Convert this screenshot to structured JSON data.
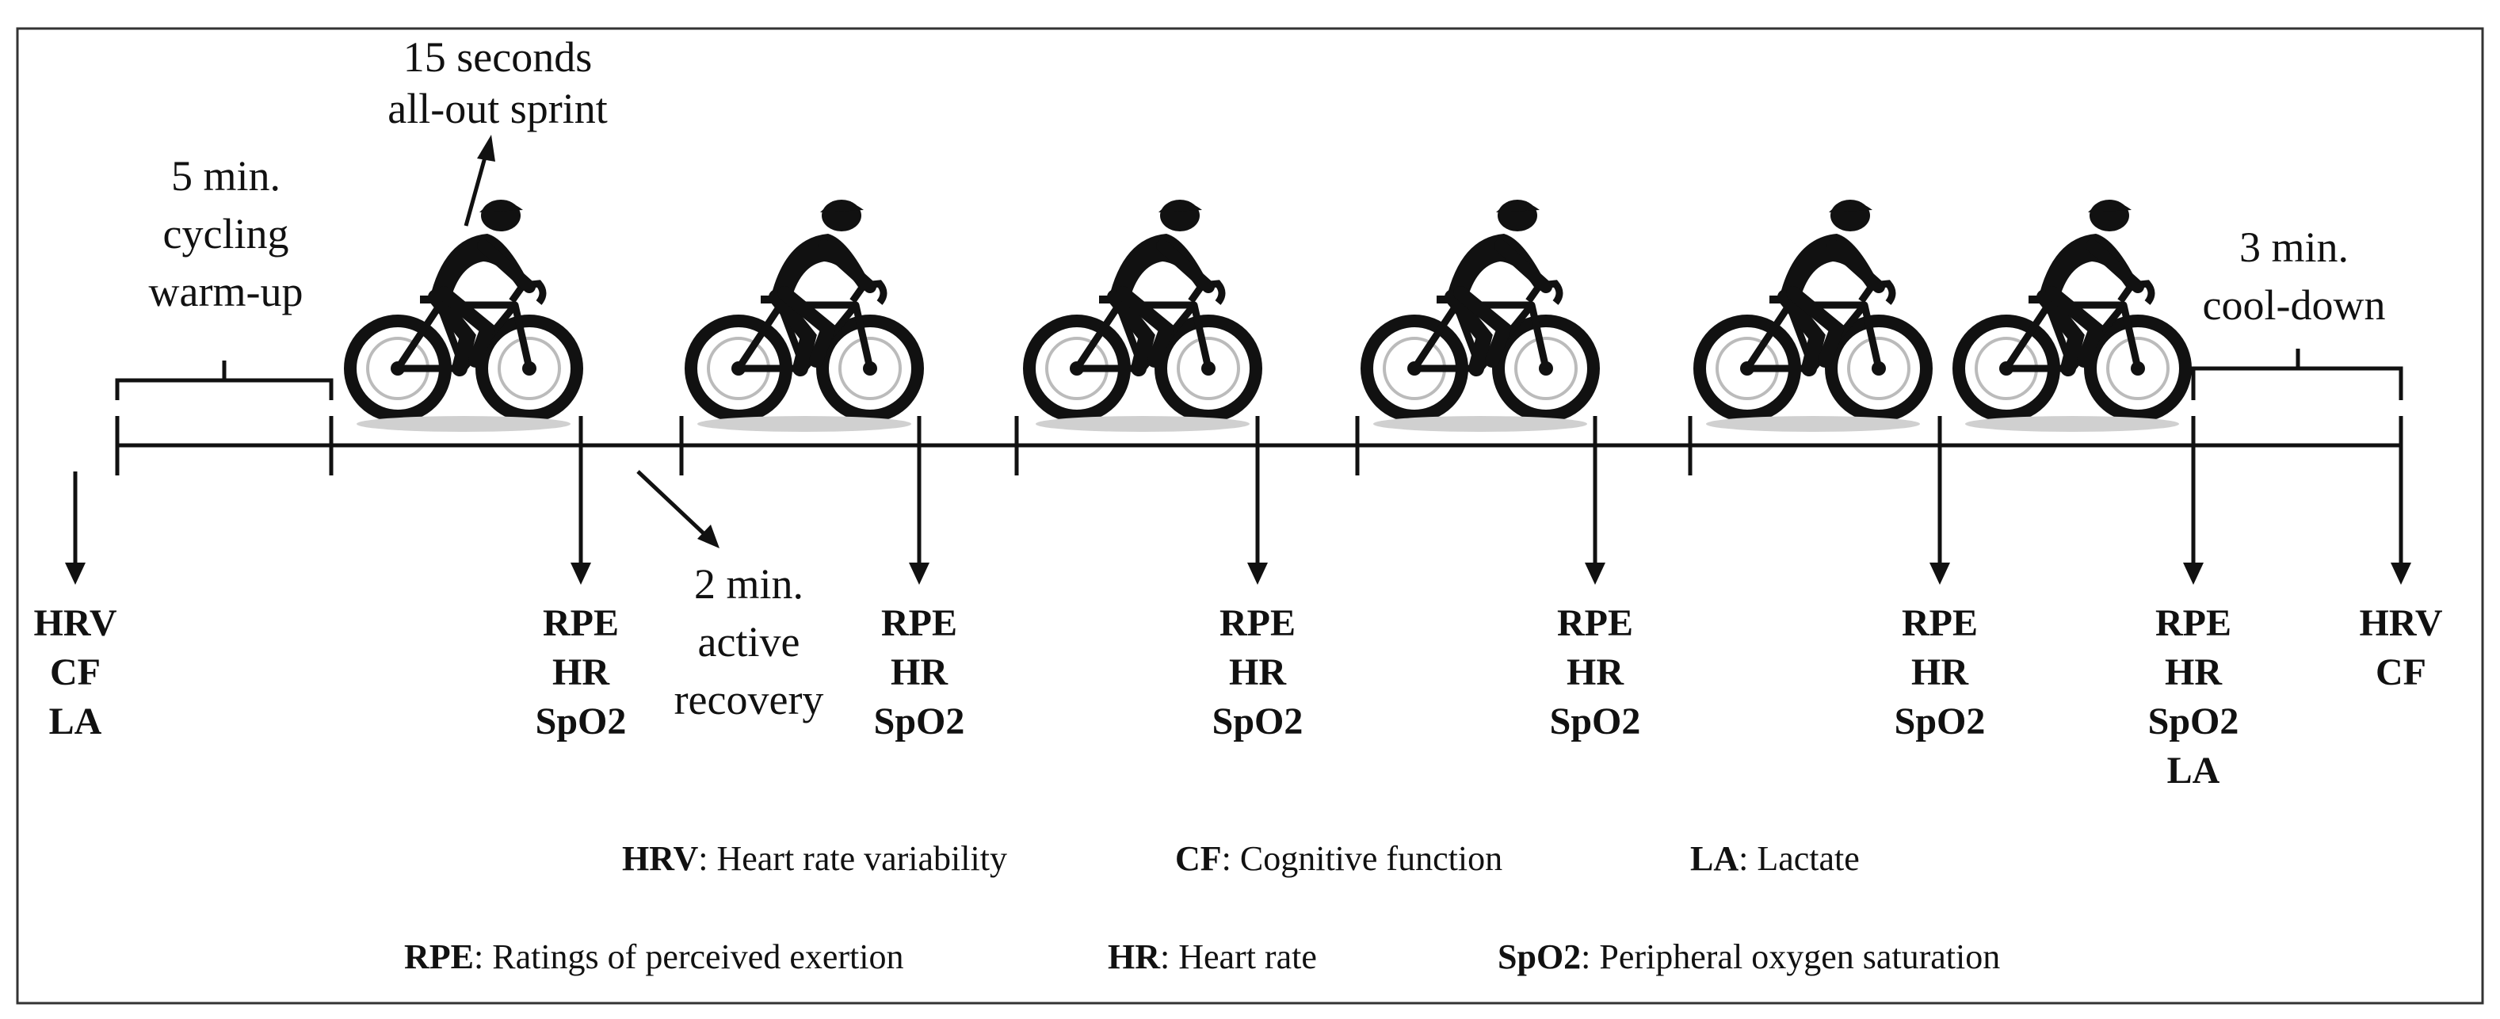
{
  "labels": {
    "sprint": [
      "15 seconds",
      "all-out sprint"
    ],
    "warmup": [
      "5 min.",
      "cycling",
      "warm-up"
    ],
    "recovery": [
      "2 min.",
      "active",
      "recovery"
    ],
    "cooldown": [
      "3 min.",
      "cool-down"
    ]
  },
  "measures": {
    "start": [
      "HRV",
      "CF",
      "LA"
    ],
    "sprint_1": [
      "RPE",
      "HR",
      "SpO2"
    ],
    "sprint_2": [
      "RPE",
      "HR",
      "SpO2"
    ],
    "sprint_3": [
      "RPE",
      "HR",
      "SpO2"
    ],
    "sprint_4": [
      "RPE",
      "HR",
      "SpO2"
    ],
    "sprint_5": [
      "RPE",
      "HR",
      "SpO2"
    ],
    "sprint_6": [
      "RPE",
      "HR",
      "SpO2",
      "LA"
    ],
    "end": [
      "HRV",
      "CF"
    ]
  },
  "legend": {
    "row1": [
      {
        "abbr": "HRV",
        "desc": ": Heart rate variability"
      },
      {
        "abbr": "CF",
        "desc": ": Cognitive function"
      },
      {
        "abbr": "LA",
        "desc": ": Lactate"
      }
    ],
    "row2": [
      {
        "abbr": "RPE",
        "desc": ": Ratings of perceived exertion"
      },
      {
        "abbr": "HR",
        "desc": ": Heart rate"
      },
      {
        "abbr": "SpO2",
        "desc": ": Peripheral oxygen saturation"
      }
    ]
  },
  "icons": {
    "cyclist": "cyclist-icon"
  }
}
